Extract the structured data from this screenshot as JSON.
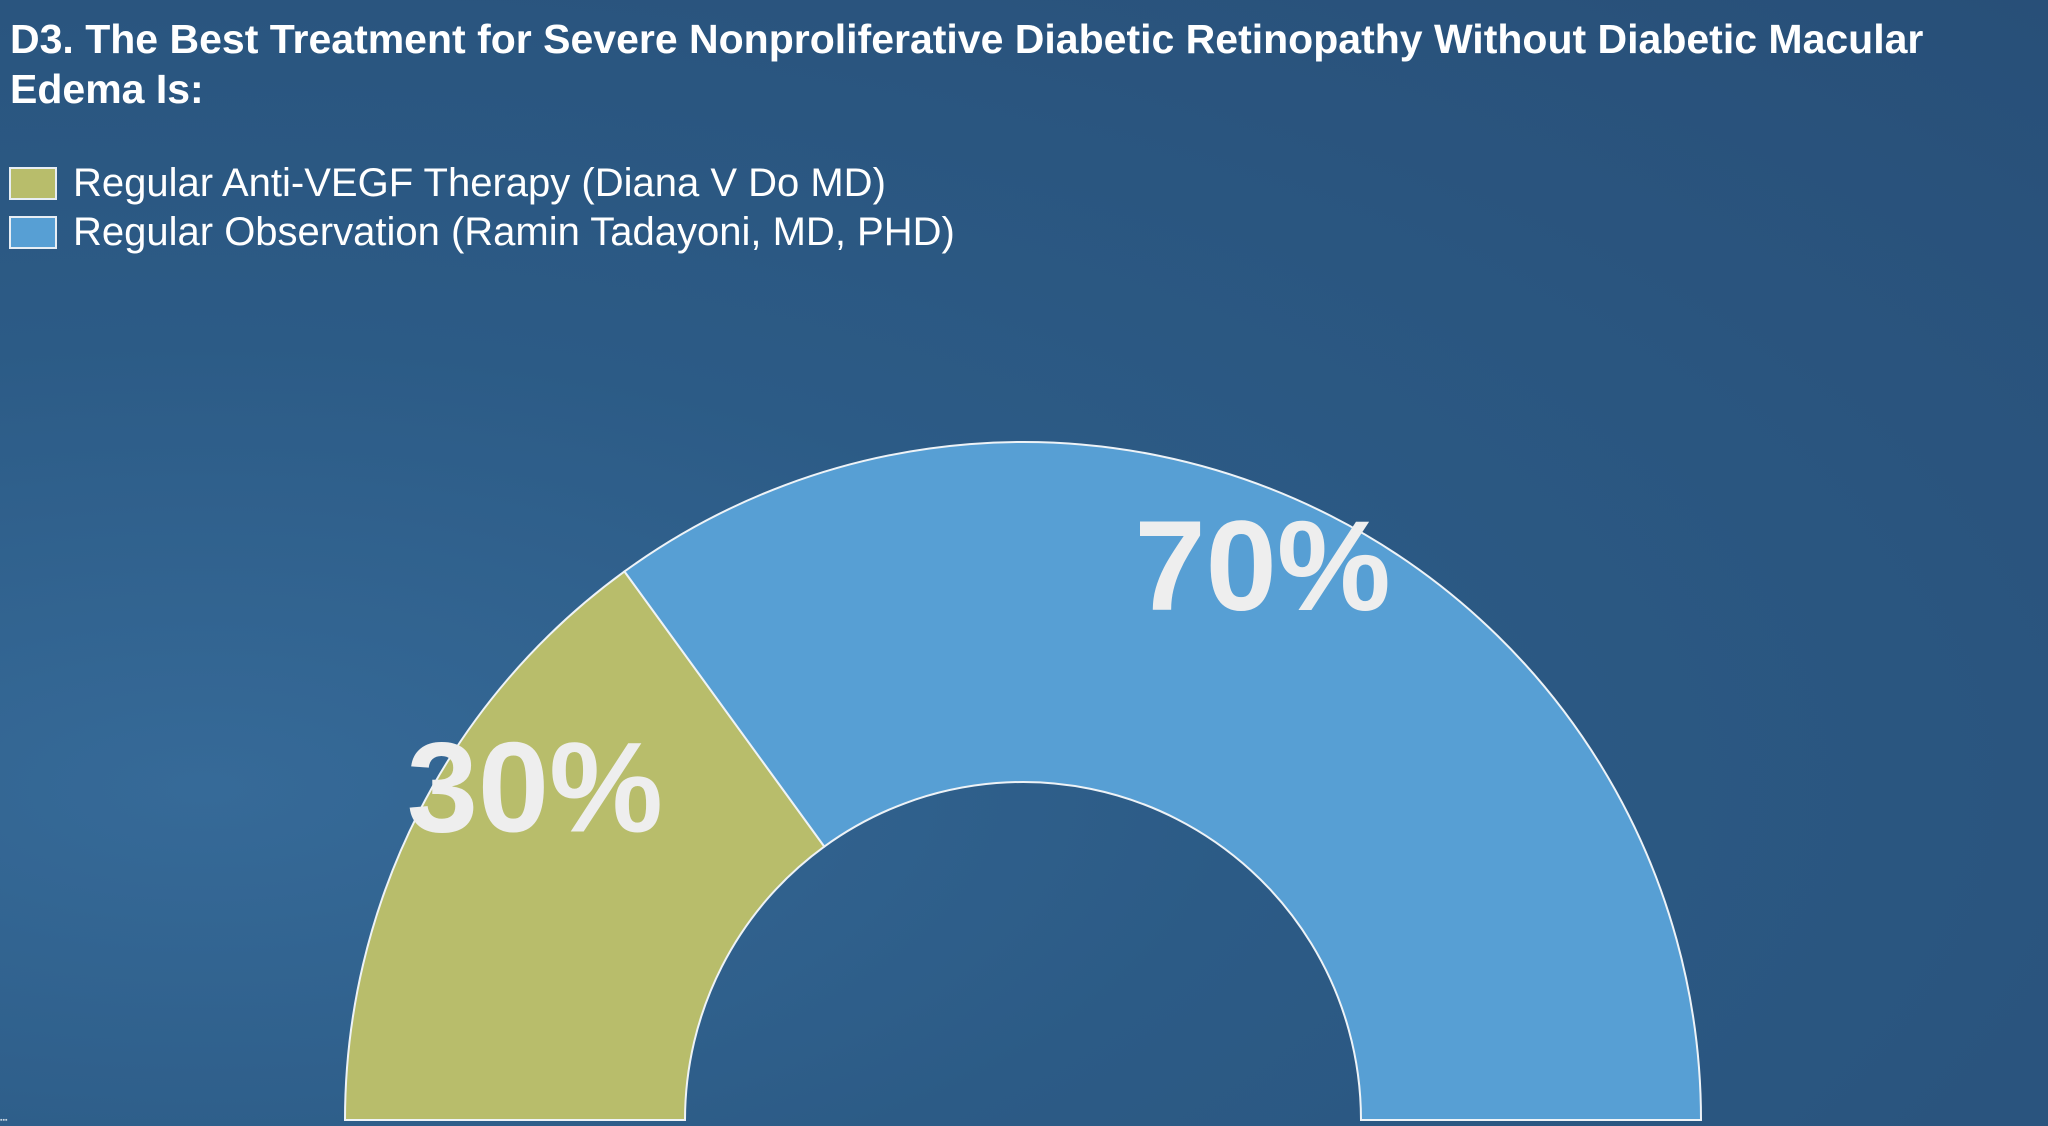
{
  "title": "D3. The Best Treatment for Severe Nonproliferative Diabetic Retinopathy Without Diabetic Macular Edema Is:",
  "legend": [
    {
      "label": "Regular Anti-VEGF Therapy (Diana V Do MD)",
      "color": "#b8bd6b"
    },
    {
      "label": "Regular Observation (Ramin Tadayoni, MD, PHD)",
      "color": "#579fd4"
    }
  ],
  "chart_data": {
    "type": "pie",
    "variant": "half-doughnut",
    "categories": [
      "Regular Anti-VEGF Therapy (Diana V Do MD)",
      "Regular Observation (Ramin Tadayoni, MD, PHD)"
    ],
    "values": [
      30,
      70
    ],
    "labels": [
      "30%",
      "70%"
    ],
    "colors": [
      "#b8bd6b",
      "#579fd4"
    ],
    "legend_position": "top-left"
  }
}
